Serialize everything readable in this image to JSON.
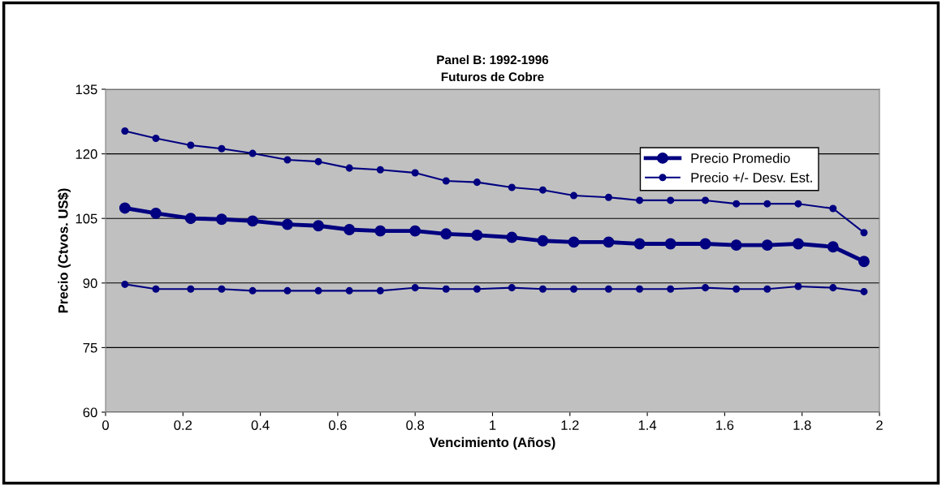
{
  "chart_data": {
    "type": "line",
    "title": "Panel B: 1992-1996",
    "subtitle": "Futuros de Cobre",
    "xlabel": "Vencimiento (Años)",
    "ylabel": "Precio (Ctvos. US$)",
    "x": [
      0.05,
      0.13,
      0.22,
      0.3,
      0.38,
      0.47,
      0.55,
      0.63,
      0.71,
      0.8,
      0.88,
      0.96,
      1.05,
      1.13,
      1.21,
      1.3,
      1.38,
      1.46,
      1.55,
      1.63,
      1.71,
      1.79,
      1.88,
      1.96
    ],
    "series": [
      {
        "name": "Precio Promedio",
        "color": "#000080",
        "values": [
          107.4,
          106.2,
          105.0,
          104.8,
          104.4,
          103.6,
          103.3,
          102.4,
          102.1,
          102.1,
          101.4,
          101.1,
          100.6,
          99.8,
          99.5,
          99.5,
          99.1,
          99.1,
          99.1,
          98.8,
          98.8,
          99.1,
          98.4,
          95.0
        ]
      },
      {
        "name": "Precio +/- Desv. Est.",
        "color": "#000080",
        "values": [
          125.3,
          123.6,
          122.0,
          121.2,
          120.1,
          118.6,
          118.2,
          116.7,
          116.3,
          115.6,
          113.7,
          113.4,
          112.2,
          111.6,
          110.3,
          109.9,
          109.2,
          109.2,
          109.2,
          108.4,
          108.4,
          108.4,
          107.3,
          101.7
        ]
      },
      {
        "color": "#000080",
        "values": [
          89.7,
          88.6,
          88.6,
          88.6,
          88.2,
          88.2,
          88.2,
          88.2,
          88.2,
          88.9,
          88.6,
          88.6,
          88.9,
          88.6,
          88.6,
          88.6,
          88.6,
          88.6,
          88.9,
          88.6,
          88.6,
          89.2,
          88.9,
          88.0
        ]
      }
    ],
    "xlim": [
      0,
      2
    ],
    "xticks": [
      0,
      0.2,
      0.4,
      0.6,
      0.8,
      1,
      1.2,
      1.4,
      1.6,
      1.8,
      2
    ],
    "ylim": [
      60,
      135
    ],
    "yticks": [
      60,
      75,
      90,
      105,
      120,
      135
    ],
    "grid": "y",
    "legend": "top right",
    "marker": "circle",
    "line_style": "solid"
  }
}
